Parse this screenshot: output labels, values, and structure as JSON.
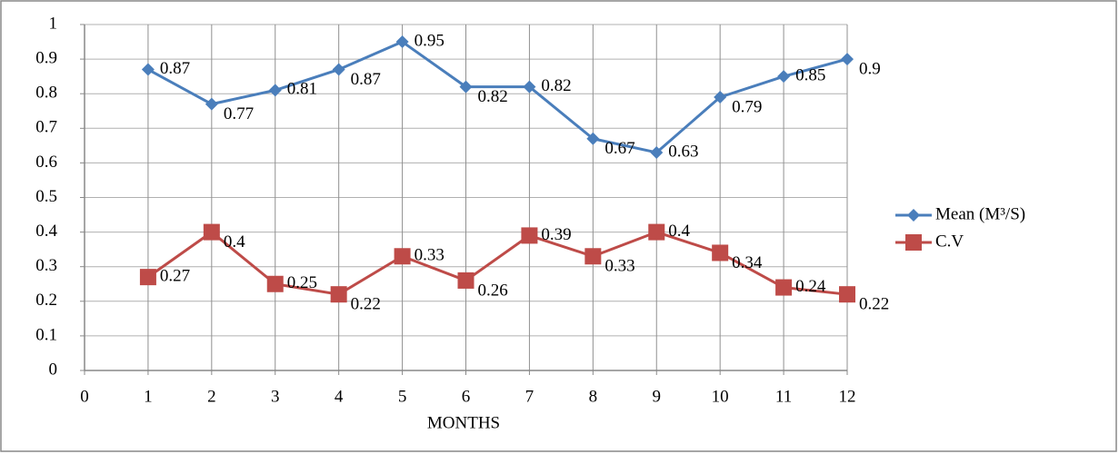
{
  "chart_data": {
    "type": "line",
    "x_label": "MONTHS",
    "x": [
      1,
      2,
      3,
      4,
      5,
      6,
      7,
      8,
      9,
      10,
      11,
      12
    ],
    "xlim": [
      0,
      12
    ],
    "xticks": [
      0,
      1,
      2,
      3,
      4,
      5,
      6,
      7,
      8,
      9,
      10,
      11,
      12
    ],
    "ylim": [
      0,
      1
    ],
    "yticks": [
      0,
      0.1,
      0.2,
      0.3,
      0.4,
      0.5,
      0.6,
      0.7,
      0.8,
      0.9,
      1
    ],
    "grid": true,
    "legend": "right",
    "series": [
      {
        "name": "Mean (M³/S)",
        "color": "#4a7ebb",
        "marker": "diamond",
        "values": [
          0.87,
          0.77,
          0.81,
          0.87,
          0.95,
          0.82,
          0.82,
          0.67,
          0.63,
          0.79,
          0.85,
          0.9
        ]
      },
      {
        "name": "C.V",
        "color": "#be4b48",
        "marker": "square",
        "values": [
          0.27,
          0.4,
          0.25,
          0.22,
          0.33,
          0.26,
          0.39,
          0.33,
          0.4,
          0.34,
          0.24,
          0.22
        ]
      }
    ]
  }
}
